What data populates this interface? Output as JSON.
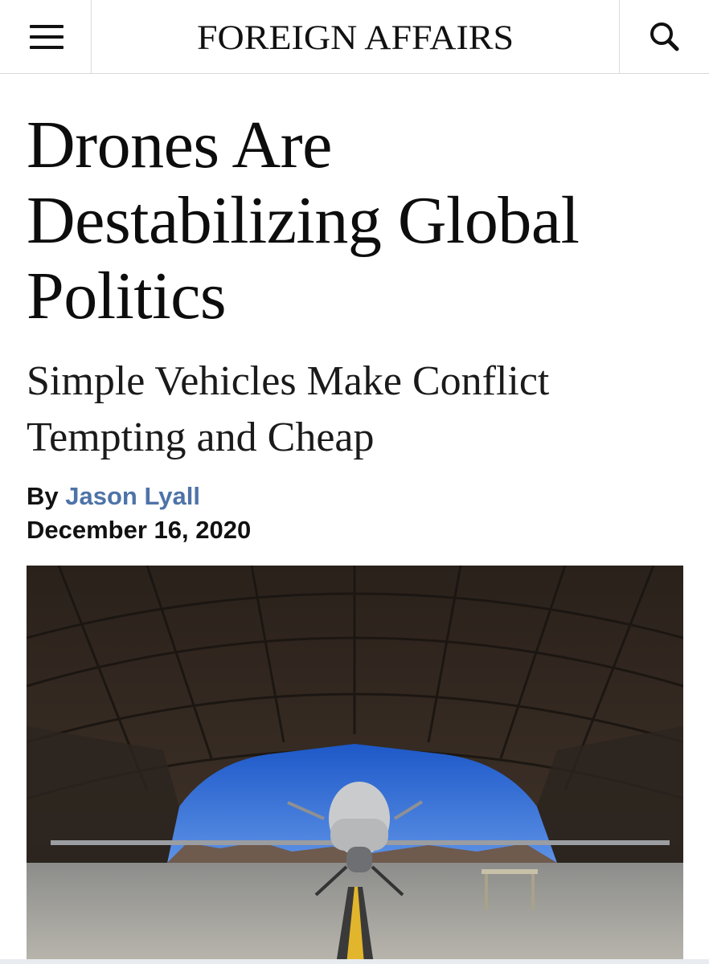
{
  "header": {
    "logo": "Foreign Affairs",
    "menu_icon": "hamburger-menu-icon",
    "search_icon": "search-icon"
  },
  "article": {
    "title": "Drones Are Destabilizing Global Politics",
    "subtitle": "Simple Vehicles Make Conflict Tempting and Cheap",
    "byline_prefix": "By",
    "author": "Jason Lyall",
    "date": "December 16, 2020"
  },
  "colors": {
    "text": "#111111",
    "author_link": "#4e73a8",
    "divider": "#d9d9d9"
  }
}
